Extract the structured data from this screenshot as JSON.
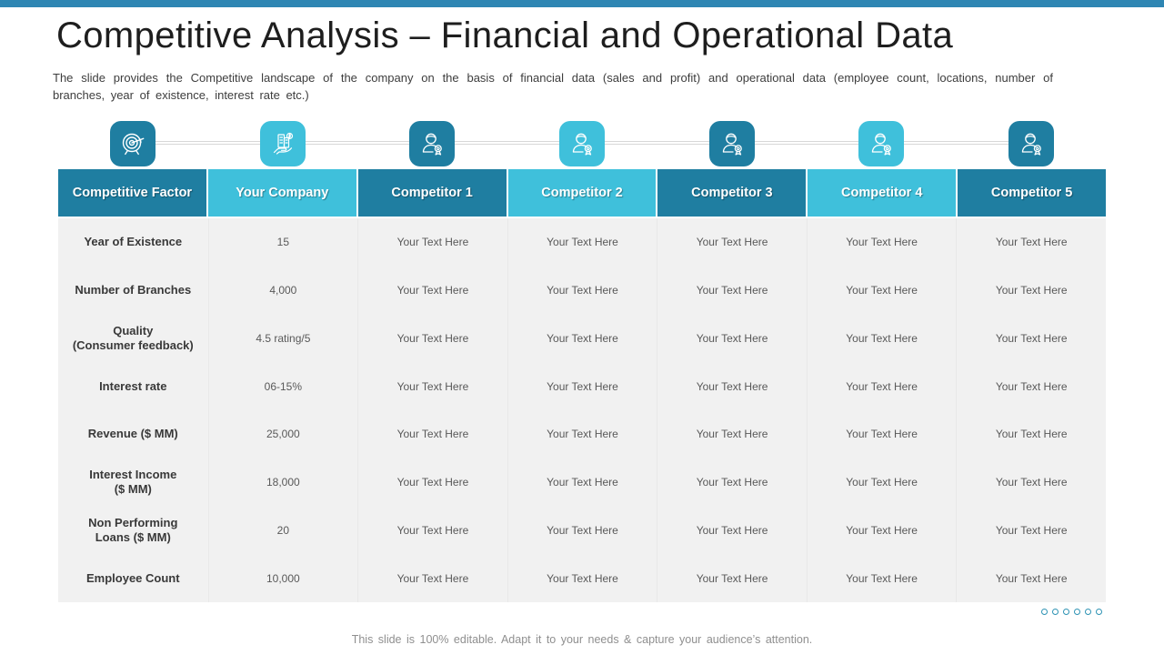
{
  "slide": {
    "title": "Competitive Analysis – Financial and Operational Data",
    "description": "The slide provides the Competitive landscape of the company on the basis of financial data (sales and profit) and operational data (employee count, locations, number of branches, year of existence, interest rate etc.)",
    "footer_note": "This slide is 100% editable. Adapt it to your needs & capture your audience’s attention."
  },
  "colors": {
    "accent_bar": "#2E86B3",
    "dark_teal": "#1F7EA1",
    "light_cyan": "#3FC0DB",
    "table_body_bg": "#F1F1F1",
    "dot_outline": "#2E93B4"
  },
  "timeline": {
    "icons": [
      {
        "icon": "target-icon",
        "tone": "dark"
      },
      {
        "icon": "city-in-hand-icon",
        "tone": "light"
      },
      {
        "icon": "person-badge-icon",
        "tone": "dark"
      },
      {
        "icon": "person-badge-icon",
        "tone": "light"
      },
      {
        "icon": "person-badge-icon",
        "tone": "dark"
      },
      {
        "icon": "person-badge-icon",
        "tone": "light"
      },
      {
        "icon": "person-badge-icon",
        "tone": "dark"
      }
    ]
  },
  "table": {
    "headers": [
      {
        "label": "Competitive Factor",
        "tone": "dark"
      },
      {
        "label": "Your Company",
        "tone": "light"
      },
      {
        "label": "Competitor 1",
        "tone": "dark"
      },
      {
        "label": "Competitor 2",
        "tone": "light"
      },
      {
        "label": "Competitor 3",
        "tone": "dark"
      },
      {
        "label": "Competitor 4",
        "tone": "light"
      },
      {
        "label": "Competitor 5",
        "tone": "dark"
      }
    ],
    "rows": [
      {
        "factor": "Year of Existence",
        "your_company": "15",
        "competitors": [
          "Your Text Here",
          "Your Text Here",
          "Your Text Here",
          "Your Text Here",
          "Your Text Here"
        ]
      },
      {
        "factor": "Number of Branches",
        "your_company": "4,000",
        "competitors": [
          "Your Text Here",
          "Your Text Here",
          "Your Text Here",
          "Your Text Here",
          "Your Text Here"
        ]
      },
      {
        "factor": "Quality\n(Consumer feedback)",
        "your_company": "4.5 rating/5",
        "competitors": [
          "Your Text Here",
          "Your Text Here",
          "Your Text Here",
          "Your Text Here",
          "Your Text Here"
        ]
      },
      {
        "factor": "Interest rate",
        "your_company": "06-15%",
        "competitors": [
          "Your Text Here",
          "Your Text Here",
          "Your Text Here",
          "Your Text Here",
          "Your Text Here"
        ]
      },
      {
        "factor": "Revenue ($ MM)",
        "your_company": "25,000",
        "competitors": [
          "Your Text Here",
          "Your Text Here",
          "Your Text Here",
          "Your Text Here",
          "Your Text Here"
        ]
      },
      {
        "factor": "Interest Income\n($ MM)",
        "your_company": "18,000",
        "competitors": [
          "Your Text Here",
          "Your Text Here",
          "Your Text Here",
          "Your Text Here",
          "Your Text Here"
        ]
      },
      {
        "factor": "Non Performing\nLoans ($ MM)",
        "your_company": "20",
        "competitors": [
          "Your Text Here",
          "Your Text Here",
          "Your Text Here",
          "Your Text Here",
          "Your Text Here"
        ]
      },
      {
        "factor": "Employee Count",
        "your_company": "10,000",
        "competitors": [
          "Your Text Here",
          "Your Text Here",
          "Your Text Here",
          "Your Text Here",
          "Your Text Here"
        ]
      }
    ]
  },
  "pagination": {
    "dot_count": 6
  }
}
